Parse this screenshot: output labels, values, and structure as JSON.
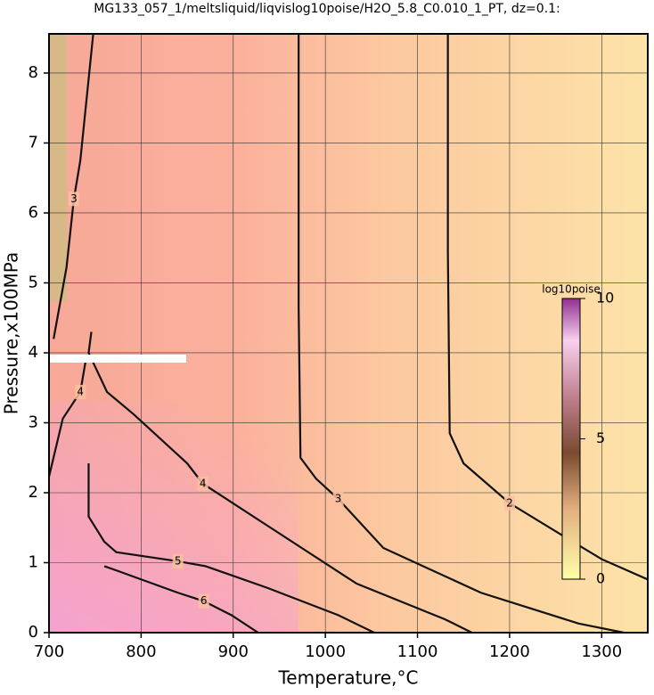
{
  "chart_data": {
    "type": "contour",
    "title": "MG133_057_1/meltsliquid/liqvislog10poise/H2O_5.8_C0.010_1_PT, dz=0.1:",
    "x_label": "Temperature,°C",
    "y_label": "Pressure,x100MPa",
    "xlim": [
      700,
      1350
    ],
    "ylim": [
      0,
      8.56
    ],
    "xticks": [
      700,
      800,
      900,
      1000,
      1100,
      1200,
      1300
    ],
    "yticks": [
      0,
      1,
      2,
      3,
      4,
      5,
      6,
      7,
      8
    ],
    "grid": true,
    "line_color": "#111111",
    "contours": [
      {
        "level": 2,
        "x": [
          1133,
          1133,
          1135,
          1150,
          1200,
          1256,
          1300,
          1350
        ],
        "y": [
          8.56,
          5.44,
          2.85,
          2.42,
          1.85,
          1.4,
          1.05,
          0.76
        ]
      },
      {
        "level": 3,
        "x": [
          971,
          971,
          973,
          990,
          1014,
          1063,
          1169,
          1275,
          1324
        ],
        "y": [
          8.56,
          4.65,
          2.5,
          2.2,
          1.91,
          1.21,
          0.57,
          0.13,
          0
        ]
      },
      {
        "level": 4,
        "x": [
          746,
          743,
          763,
          792,
          850,
          867,
          937,
          1034,
          1130,
          1159
        ],
        "y": [
          4.3,
          4.0,
          3.44,
          3.12,
          2.42,
          2.13,
          1.53,
          0.7,
          0.19,
          0
        ]
      },
      {
        "level": 5,
        "x": [
          743,
          743,
          760,
          773,
          840,
          870,
          937,
          1014,
          1053
        ],
        "y": [
          2.42,
          1.66,
          1.3,
          1.15,
          1.02,
          0.95,
          0.64,
          0.25,
          0
        ]
      },
      {
        "level": 6,
        "x": [
          760,
          773,
          840,
          868,
          898,
          927
        ],
        "y": [
          0.95,
          0.89,
          0.57,
          0.45,
          0.25,
          0
        ]
      },
      {
        "level": 3,
        "x": [
          705,
          719,
          727,
          734,
          748
        ],
        "y": [
          4.2,
          5.22,
          6.2,
          6.75,
          8.56
        ]
      },
      {
        "level": 4,
        "x": [
          700,
          715,
          734,
          740
        ],
        "y": [
          2.23,
          3.06,
          3.44,
          3.9
        ]
      }
    ],
    "colorbar": {
      "title": "log10poise",
      "lim": [
        0,
        10
      ],
      "ticks": [
        0,
        5,
        10
      ]
    }
  }
}
